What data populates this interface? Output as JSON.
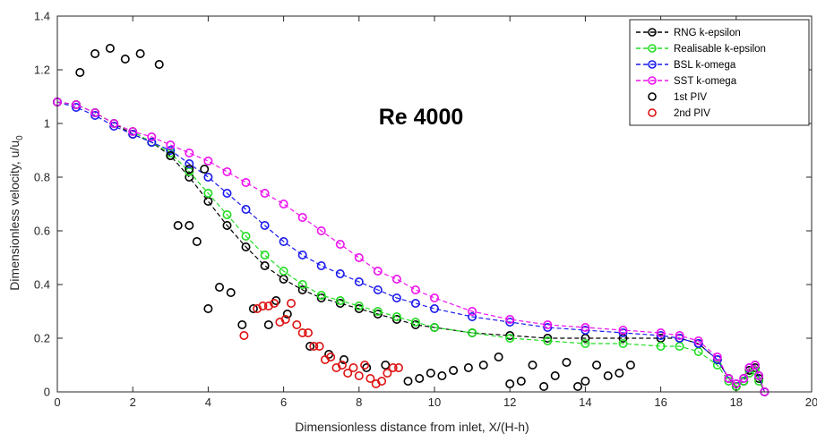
{
  "chart_data": {
    "type": "scatter",
    "annotation": "Re 4000",
    "xlabel": "Dimensionless distance from inlet, X/(H-h)",
    "ylabel": "Dimensionless velocity, u/u",
    "ylabel_subscript": "0",
    "xlim": [
      0,
      20
    ],
    "ylim": [
      0,
      1.4
    ],
    "xticks": [
      "0",
      "2",
      "4",
      "6",
      "8",
      "10",
      "12",
      "14",
      "16",
      "18",
      "20"
    ],
    "yticks": [
      "0",
      "0.2",
      "0.4",
      "0.6",
      "0.8",
      "1",
      "1.2",
      "1.4"
    ],
    "grid": false,
    "legend_position": "top-right",
    "series": [
      {
        "name": "RNG k-epsilon",
        "color": "#000000",
        "marker": "circle",
        "line": "dashed",
        "points": [
          [
            0,
            1.08
          ],
          [
            0.5,
            1.07
          ],
          [
            1,
            1.04
          ],
          [
            1.5,
            1.0
          ],
          [
            2,
            0.96
          ],
          [
            2.5,
            0.93
          ],
          [
            3,
            0.88
          ],
          [
            3.5,
            0.8
          ],
          [
            4,
            0.71
          ],
          [
            4.5,
            0.62
          ],
          [
            5,
            0.54
          ],
          [
            5.5,
            0.47
          ],
          [
            6,
            0.42
          ],
          [
            6.5,
            0.38
          ],
          [
            7,
            0.35
          ],
          [
            7.5,
            0.33
          ],
          [
            8,
            0.31
          ],
          [
            8.5,
            0.29
          ],
          [
            9,
            0.27
          ],
          [
            9.5,
            0.25
          ],
          [
            10,
            0.24
          ],
          [
            11,
            0.22
          ],
          [
            12,
            0.21
          ],
          [
            13,
            0.2
          ],
          [
            14,
            0.2
          ],
          [
            15,
            0.2
          ],
          [
            16,
            0.2
          ],
          [
            16.5,
            0.2
          ],
          [
            17,
            0.18
          ],
          [
            17.5,
            0.12
          ],
          [
            17.8,
            0.05
          ],
          [
            18,
            0.02
          ],
          [
            18.2,
            0.04
          ],
          [
            18.35,
            0.08
          ],
          [
            18.5,
            0.09
          ],
          [
            18.6,
            0.05
          ],
          [
            18.75,
            0.0
          ]
        ]
      },
      {
        "name": "Realisable k-epsilon",
        "color": "#22dd22",
        "marker": "circle",
        "line": "dashed",
        "points": [
          [
            0,
            1.08
          ],
          [
            0.5,
            1.07
          ],
          [
            1,
            1.04
          ],
          [
            1.5,
            1.0
          ],
          [
            2,
            0.97
          ],
          [
            2.5,
            0.93
          ],
          [
            3,
            0.89
          ],
          [
            3.5,
            0.82
          ],
          [
            4,
            0.74
          ],
          [
            4.5,
            0.66
          ],
          [
            5,
            0.58
          ],
          [
            5.5,
            0.51
          ],
          [
            6,
            0.45
          ],
          [
            6.5,
            0.4
          ],
          [
            7,
            0.36
          ],
          [
            7.5,
            0.34
          ],
          [
            8,
            0.32
          ],
          [
            8.5,
            0.3
          ],
          [
            9,
            0.28
          ],
          [
            9.5,
            0.26
          ],
          [
            10,
            0.24
          ],
          [
            11,
            0.22
          ],
          [
            12,
            0.2
          ],
          [
            13,
            0.19
          ],
          [
            14,
            0.18
          ],
          [
            15,
            0.18
          ],
          [
            16,
            0.17
          ],
          [
            16.5,
            0.17
          ],
          [
            17,
            0.15
          ],
          [
            17.5,
            0.1
          ],
          [
            17.8,
            0.04
          ],
          [
            18,
            0.02
          ],
          [
            18.2,
            0.04
          ],
          [
            18.35,
            0.07
          ],
          [
            18.5,
            0.08
          ],
          [
            18.6,
            0.04
          ],
          [
            18.75,
            0.0
          ]
        ]
      },
      {
        "name": "BSL k-omega",
        "color": "#1a1aee",
        "marker": "circle",
        "line": "dashed",
        "points": [
          [
            0,
            1.08
          ],
          [
            0.5,
            1.06
          ],
          [
            1,
            1.03
          ],
          [
            1.5,
            0.99
          ],
          [
            2,
            0.96
          ],
          [
            2.5,
            0.93
          ],
          [
            3,
            0.9
          ],
          [
            3.5,
            0.85
          ],
          [
            4,
            0.8
          ],
          [
            4.5,
            0.74
          ],
          [
            5,
            0.68
          ],
          [
            5.5,
            0.62
          ],
          [
            6,
            0.56
          ],
          [
            6.5,
            0.51
          ],
          [
            7,
            0.47
          ],
          [
            7.5,
            0.44
          ],
          [
            8,
            0.41
          ],
          [
            8.5,
            0.38
          ],
          [
            9,
            0.35
          ],
          [
            9.5,
            0.33
          ],
          [
            10,
            0.31
          ],
          [
            11,
            0.28
          ],
          [
            12,
            0.26
          ],
          [
            13,
            0.24
          ],
          [
            14,
            0.23
          ],
          [
            15,
            0.22
          ],
          [
            16,
            0.21
          ],
          [
            16.5,
            0.2
          ],
          [
            17,
            0.18
          ],
          [
            17.5,
            0.12
          ],
          [
            17.8,
            0.05
          ],
          [
            18,
            0.03
          ],
          [
            18.2,
            0.05
          ],
          [
            18.35,
            0.09
          ],
          [
            18.5,
            0.1
          ],
          [
            18.6,
            0.06
          ],
          [
            18.75,
            0.0
          ]
        ]
      },
      {
        "name": "SST k-omega",
        "color": "#ee11ee",
        "marker": "circle",
        "line": "dashed",
        "points": [
          [
            0,
            1.08
          ],
          [
            0.5,
            1.07
          ],
          [
            1,
            1.04
          ],
          [
            1.5,
            1.0
          ],
          [
            2,
            0.97
          ],
          [
            2.5,
            0.95
          ],
          [
            3,
            0.92
          ],
          [
            3.5,
            0.89
          ],
          [
            4,
            0.86
          ],
          [
            4.5,
            0.82
          ],
          [
            5,
            0.78
          ],
          [
            5.5,
            0.74
          ],
          [
            6,
            0.7
          ],
          [
            6.5,
            0.65
          ],
          [
            7,
            0.6
          ],
          [
            7.5,
            0.55
          ],
          [
            8,
            0.5
          ],
          [
            8.5,
            0.45
          ],
          [
            9,
            0.42
          ],
          [
            9.5,
            0.38
          ],
          [
            10,
            0.35
          ],
          [
            11,
            0.3
          ],
          [
            12,
            0.27
          ],
          [
            13,
            0.25
          ],
          [
            14,
            0.24
          ],
          [
            15,
            0.23
          ],
          [
            16,
            0.22
          ],
          [
            16.5,
            0.21
          ],
          [
            17,
            0.19
          ],
          [
            17.5,
            0.13
          ],
          [
            17.8,
            0.05
          ],
          [
            18,
            0.03
          ],
          [
            18.2,
            0.05
          ],
          [
            18.35,
            0.09
          ],
          [
            18.5,
            0.1
          ],
          [
            18.6,
            0.06
          ],
          [
            18.75,
            0.0
          ]
        ]
      },
      {
        "name": "1st PIV",
        "color": "#000000",
        "marker": "circle",
        "line": "none",
        "points": [
          [
            0.6,
            1.19
          ],
          [
            1.0,
            1.26
          ],
          [
            1.4,
            1.28
          ],
          [
            1.8,
            1.24
          ],
          [
            2.2,
            1.26
          ],
          [
            2.7,
            1.22
          ],
          [
            3.0,
            0.88
          ],
          [
            3.5,
            0.83
          ],
          [
            3.9,
            0.83
          ],
          [
            3.2,
            0.62
          ],
          [
            3.5,
            0.62
          ],
          [
            3.7,
            0.56
          ],
          [
            4.0,
            0.31
          ],
          [
            4.3,
            0.39
          ],
          [
            4.6,
            0.37
          ],
          [
            4.9,
            0.25
          ],
          [
            5.2,
            0.31
          ],
          [
            5.6,
            0.25
          ],
          [
            5.8,
            0.34
          ],
          [
            6.1,
            0.29
          ],
          [
            6.7,
            0.17
          ],
          [
            7.2,
            0.14
          ],
          [
            7.6,
            0.12
          ],
          [
            8.2,
            0.09
          ],
          [
            8.7,
            0.1
          ],
          [
            9.3,
            0.04
          ],
          [
            9.6,
            0.05
          ],
          [
            9.9,
            0.07
          ],
          [
            10.2,
            0.06
          ],
          [
            10.5,
            0.08
          ],
          [
            10.9,
            0.09
          ],
          [
            11.3,
            0.1
          ],
          [
            11.7,
            0.13
          ],
          [
            12.0,
            0.03
          ],
          [
            12.3,
            0.04
          ],
          [
            12.6,
            0.1
          ],
          [
            12.9,
            0.02
          ],
          [
            13.2,
            0.06
          ],
          [
            13.5,
            0.11
          ],
          [
            13.8,
            0.02
          ],
          [
            14.0,
            0.04
          ],
          [
            14.3,
            0.1
          ],
          [
            14.6,
            0.06
          ],
          [
            14.9,
            0.07
          ],
          [
            15.2,
            0.1
          ]
        ]
      },
      {
        "name": "2nd PIV",
        "color": "#dd1111",
        "marker": "circle",
        "line": "none",
        "points": [
          [
            4.95,
            0.21
          ],
          [
            5.3,
            0.31
          ],
          [
            5.45,
            0.32
          ],
          [
            5.6,
            0.32
          ],
          [
            5.75,
            0.33
          ],
          [
            5.9,
            0.26
          ],
          [
            6.05,
            0.27
          ],
          [
            6.2,
            0.33
          ],
          [
            6.35,
            0.25
          ],
          [
            6.5,
            0.22
          ],
          [
            6.65,
            0.22
          ],
          [
            6.8,
            0.17
          ],
          [
            6.95,
            0.17
          ],
          [
            7.1,
            0.12
          ],
          [
            7.25,
            0.13
          ],
          [
            7.4,
            0.09
          ],
          [
            7.55,
            0.1
          ],
          [
            7.7,
            0.07
          ],
          [
            7.85,
            0.09
          ],
          [
            8.0,
            0.06
          ],
          [
            8.15,
            0.1
          ],
          [
            8.3,
            0.05
          ],
          [
            8.45,
            0.03
          ],
          [
            8.6,
            0.04
          ],
          [
            8.75,
            0.07
          ],
          [
            8.9,
            0.09
          ],
          [
            9.05,
            0.09
          ]
        ]
      }
    ]
  }
}
